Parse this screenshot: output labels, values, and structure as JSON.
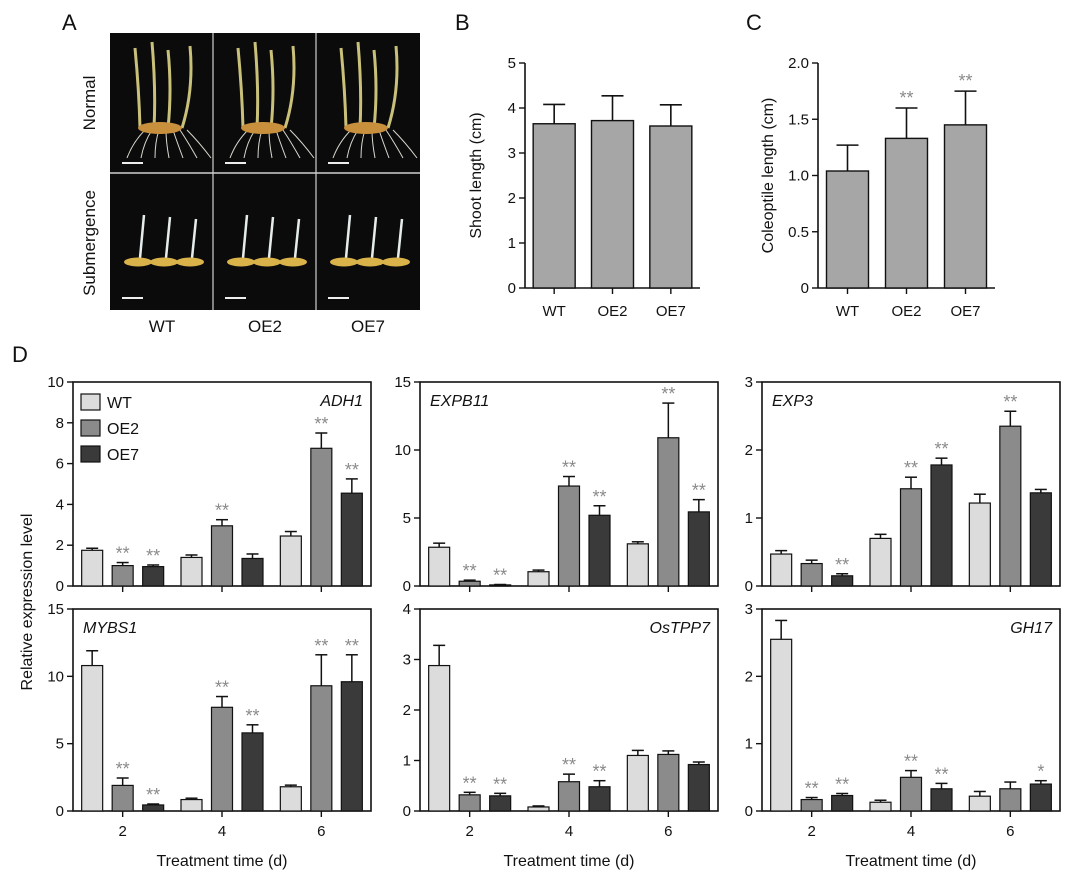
{
  "panel_letters": [
    "A",
    "B",
    "C",
    "D"
  ],
  "colors": {
    "wt": "#dcdcdc",
    "oe2": "#8b8b8b",
    "oe7": "#3a3a3a",
    "single_bar": "#a6a6a6",
    "star": "#8a8a8a",
    "photo_bg": "#0b0b0b"
  },
  "panelA": {
    "rows": [
      "Normal",
      "Submergence"
    ],
    "columns": [
      "WT",
      "OE2",
      "OE7"
    ]
  },
  "chart_data": [
    {
      "id": "B",
      "type": "bar",
      "title": "",
      "categories": [
        "WT",
        "OE2",
        "OE7"
      ],
      "values": [
        3.65,
        3.72,
        3.6
      ],
      "errors": [
        0.43,
        0.55,
        0.47
      ],
      "significance": [
        "",
        "",
        ""
      ],
      "ylabel": "Shoot length (cm)",
      "xlabel": "",
      "ylim": [
        0,
        5
      ],
      "yticks": [
        "0",
        "1",
        "2",
        "3",
        "4",
        "5"
      ]
    },
    {
      "id": "C",
      "type": "bar",
      "title": "",
      "categories": [
        "WT",
        "OE2",
        "OE7"
      ],
      "values": [
        1.04,
        1.33,
        1.45
      ],
      "errors": [
        0.23,
        0.27,
        0.3
      ],
      "significance": [
        "",
        "**",
        "**"
      ],
      "ylabel": "Coleoptile  length (cm)",
      "xlabel": "",
      "ylim": [
        0,
        2.0
      ],
      "yticks": [
        "0",
        "0.5",
        "1.0",
        "1.5",
        "2.0"
      ]
    },
    {
      "id": "D-ADH1",
      "type": "bar",
      "title": "ADH1",
      "categories": [
        "2",
        "4",
        "6"
      ],
      "series": [
        {
          "name": "WT",
          "values": [
            1.75,
            1.4,
            2.45
          ],
          "errors": [
            0.1,
            0.12,
            0.22
          ],
          "significance": [
            "",
            "",
            ""
          ]
        },
        {
          "name": "OE2",
          "values": [
            1.0,
            2.95,
            6.75
          ],
          "errors": [
            0.15,
            0.3,
            0.75
          ],
          "significance": [
            "**",
            "**",
            "**"
          ]
        },
        {
          "name": "OE7",
          "values": [
            0.95,
            1.35,
            4.55
          ],
          "errors": [
            0.08,
            0.22,
            0.7
          ],
          "significance": [
            "**",
            "",
            "**"
          ]
        }
      ],
      "ylim": [
        0,
        10
      ],
      "yticks": [
        "0",
        "2",
        "4",
        "6",
        "8",
        "10"
      ],
      "ylabel": "",
      "xlabel": ""
    },
    {
      "id": "D-EXPB11",
      "type": "bar",
      "title": "EXPB11",
      "categories": [
        "2",
        "4",
        "6"
      ],
      "series": [
        {
          "name": "WT",
          "values": [
            2.85,
            1.05,
            3.1
          ],
          "errors": [
            0.3,
            0.12,
            0.15
          ],
          "significance": [
            "",
            "",
            ""
          ]
        },
        {
          "name": "OE2",
          "values": [
            0.35,
            7.35,
            10.9
          ],
          "errors": [
            0.08,
            0.7,
            2.55
          ],
          "significance": [
            "**",
            "**",
            "**"
          ]
        },
        {
          "name": "OE7",
          "values": [
            0.08,
            5.2,
            5.45
          ],
          "errors": [
            0.03,
            0.7,
            0.9
          ],
          "significance": [
            "**",
            "**",
            "**"
          ]
        }
      ],
      "ylim": [
        0,
        15
      ],
      "yticks": [
        "0",
        "5",
        "10",
        "15"
      ],
      "ylabel": "",
      "xlabel": ""
    },
    {
      "id": "D-EXP3",
      "type": "bar",
      "title": "EXP3",
      "categories": [
        "2",
        "4",
        "6"
      ],
      "series": [
        {
          "name": "WT",
          "values": [
            0.47,
            0.7,
            1.22
          ],
          "errors": [
            0.05,
            0.06,
            0.13
          ],
          "significance": [
            "",
            "",
            ""
          ]
        },
        {
          "name": "OE2",
          "values": [
            0.33,
            1.43,
            2.35
          ],
          "errors": [
            0.05,
            0.17,
            0.22
          ],
          "significance": [
            "",
            "**",
            "**"
          ]
        },
        {
          "name": "OE7",
          "values": [
            0.15,
            1.78,
            1.37
          ],
          "errors": [
            0.03,
            0.1,
            0.05
          ],
          "significance": [
            "**",
            "**",
            ""
          ]
        }
      ],
      "ylim": [
        0,
        3
      ],
      "yticks": [
        "0",
        "1",
        "2",
        "3"
      ],
      "ylabel": "",
      "xlabel": ""
    },
    {
      "id": "D-MYBS1",
      "type": "bar",
      "title": "MYBS1",
      "categories": [
        "2",
        "4",
        "6"
      ],
      "series": [
        {
          "name": "WT",
          "values": [
            10.8,
            0.85,
            1.8
          ],
          "errors": [
            1.1,
            0.1,
            0.12
          ],
          "significance": [
            "",
            "",
            ""
          ]
        },
        {
          "name": "OE2",
          "values": [
            1.9,
            7.7,
            9.3
          ],
          "errors": [
            0.55,
            0.8,
            2.3
          ],
          "significance": [
            "**",
            "**",
            "**"
          ]
        },
        {
          "name": "OE7",
          "values": [
            0.45,
            5.8,
            9.6
          ],
          "errors": [
            0.07,
            0.6,
            2.0
          ],
          "significance": [
            "**",
            "**",
            "**"
          ]
        }
      ],
      "ylim": [
        0,
        15
      ],
      "yticks": [
        "0",
        "5",
        "10",
        "15"
      ],
      "ylabel": "",
      "xlabel": "Treatment time (d)"
    },
    {
      "id": "D-OsTPP7",
      "type": "bar",
      "title": "OsTPP7",
      "categories": [
        "2",
        "4",
        "6"
      ],
      "series": [
        {
          "name": "WT",
          "values": [
            2.88,
            0.08,
            1.1
          ],
          "errors": [
            0.4,
            0.02,
            0.1
          ],
          "significance": [
            "",
            "",
            ""
          ]
        },
        {
          "name": "OE2",
          "values": [
            0.32,
            0.58,
            1.12
          ],
          "errors": [
            0.05,
            0.15,
            0.07
          ],
          "significance": [
            "**",
            "**",
            ""
          ]
        },
        {
          "name": "OE7",
          "values": [
            0.3,
            0.48,
            0.92
          ],
          "errors": [
            0.05,
            0.12,
            0.05
          ],
          "significance": [
            "**",
            "**",
            ""
          ]
        }
      ],
      "ylim": [
        0,
        4
      ],
      "yticks": [
        "0",
        "1",
        "2",
        "3",
        "4"
      ],
      "ylabel": "",
      "xlabel": "Treatment time (d)"
    },
    {
      "id": "D-GH17",
      "type": "bar",
      "title": "GH17",
      "categories": [
        "2",
        "4",
        "6"
      ],
      "series": [
        {
          "name": "WT",
          "values": [
            2.55,
            0.13,
            0.22
          ],
          "errors": [
            0.28,
            0.03,
            0.07
          ],
          "significance": [
            "",
            "",
            ""
          ]
        },
        {
          "name": "OE2",
          "values": [
            0.17,
            0.5,
            0.33
          ],
          "errors": [
            0.03,
            0.1,
            0.1
          ],
          "significance": [
            "**",
            "**",
            ""
          ]
        },
        {
          "name": "OE7",
          "values": [
            0.23,
            0.33,
            0.4
          ],
          "errors": [
            0.03,
            0.08,
            0.05
          ],
          "significance": [
            "**",
            "**",
            "*"
          ]
        }
      ],
      "ylim": [
        0,
        3
      ],
      "yticks": [
        "0",
        "1",
        "2",
        "3"
      ],
      "ylabel": "",
      "xlabel": "Treatment time (d)"
    }
  ],
  "panelD": {
    "ylabel": "Relative expression level",
    "legend": [
      "WT",
      "OE2",
      "OE7"
    ]
  }
}
